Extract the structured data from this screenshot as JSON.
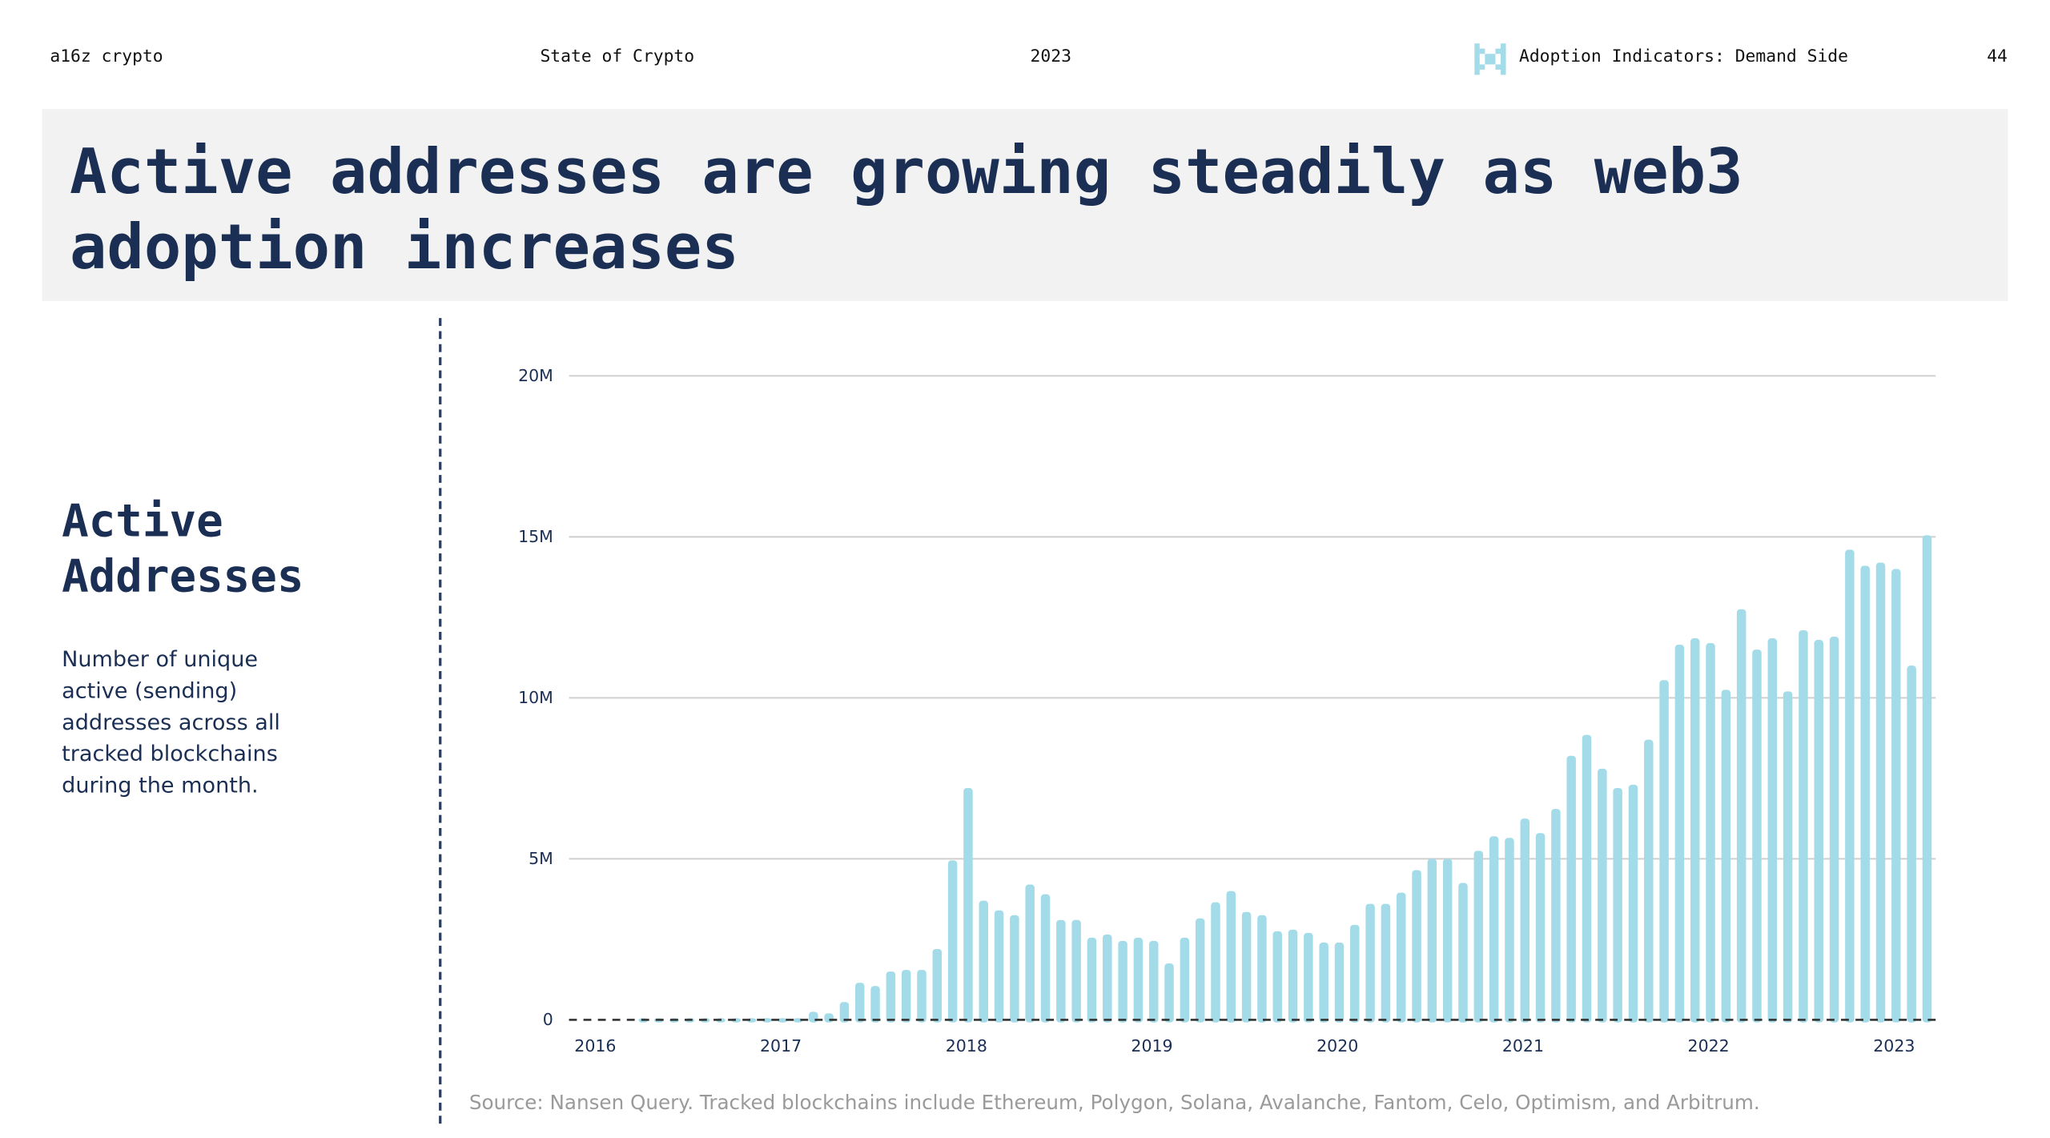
{
  "header": {
    "brand": "a16z crypto",
    "report": "State of Crypto",
    "year": "2023",
    "section_icon": "pixel-x-icon",
    "section": "Adoption Indicators: Demand Side",
    "page_number": "44"
  },
  "title": "Active addresses are growing steadily as web3 adoption increases",
  "sidebar": {
    "heading": "Active Addresses",
    "description": "Number of unique active (sending) addresses across all tracked blockchains during the month."
  },
  "colors": {
    "bar": "#a3dce8",
    "text": "#1b2f55",
    "title_bg": "#f2f2f2"
  },
  "chart_data": {
    "type": "bar",
    "start": "2016-01",
    "frequency": "monthly",
    "x_tick_labels": [
      "2016",
      "2017",
      "2018",
      "2019",
      "2020",
      "2021",
      "2022",
      "2023"
    ],
    "y_tick_labels": [
      "0",
      "5M",
      "10M",
      "15M",
      "20M"
    ],
    "ylim": [
      0,
      20000000
    ],
    "grid": true,
    "values_millions": [
      0,
      0,
      0,
      0.05,
      0.05,
      0.05,
      0.05,
      0.05,
      0.05,
      0.05,
      0.05,
      0.05,
      0.05,
      0.05,
      0.25,
      0.2,
      0.55,
      1.15,
      1.05,
      1.5,
      1.55,
      1.55,
      2.2,
      4.95,
      7.2,
      3.7,
      3.4,
      3.25,
      4.2,
      3.9,
      3.1,
      3.1,
      2.55,
      2.65,
      2.45,
      2.55,
      2.45,
      1.75,
      2.55,
      3.15,
      3.65,
      4.0,
      3.35,
      3.25,
      2.75,
      2.8,
      2.7,
      2.4,
      2.4,
      2.95,
      3.6,
      3.6,
      3.95,
      4.65,
      5.0,
      5.0,
      4.25,
      5.25,
      5.7,
      5.65,
      6.25,
      5.8,
      6.55,
      8.2,
      8.85,
      7.8,
      7.2,
      7.3,
      8.7,
      10.55,
      11.65,
      11.85,
      11.7,
      10.25,
      12.75,
      11.5,
      11.85,
      10.2,
      12.1,
      11.8,
      11.9,
      14.6,
      14.1,
      14.2,
      14.0,
      11.0,
      15.05
    ]
  },
  "source": "Source: Nansen Query. Tracked blockchains include Ethereum, Polygon, Solana, Avalanche, Fantom, Celo, Optimism, and Arbitrum."
}
